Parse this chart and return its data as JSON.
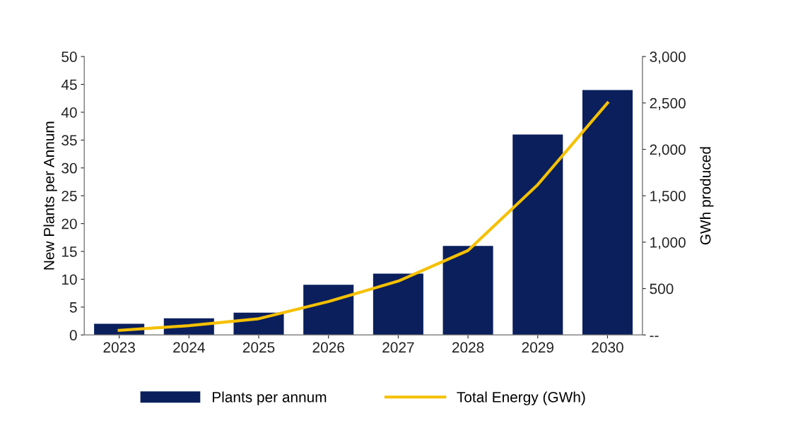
{
  "chart_data": {
    "type": "bar",
    "categories": [
      "2023",
      "2024",
      "2025",
      "2026",
      "2027",
      "2028",
      "2029",
      "2030"
    ],
    "series": [
      {
        "name": "Plants per annum",
        "color": "#0a1f5c",
        "values": [
          2,
          3,
          4,
          9,
          11,
          16,
          36,
          44
        ]
      },
      {
        "name": "Total Energy (GWh)",
        "type": "line",
        "axis": "y2",
        "color": "#f5c000",
        "values": [
          50,
          100,
          175,
          360,
          580,
          910,
          1620,
          2500
        ]
      }
    ],
    "ylabel": "New Plants per Annum",
    "y2label": "GWh produced",
    "ylim": [
      0,
      50
    ],
    "yticks": [
      0,
      5,
      10,
      15,
      20,
      25,
      30,
      35,
      40,
      45,
      50
    ],
    "y2lim": [
      0,
      3000
    ],
    "y2ticks": [
      {
        "value": 0,
        "label": "--"
      },
      {
        "value": 500,
        "label": "500"
      },
      {
        "value": 1000,
        "label": "1,000"
      },
      {
        "value": 1500,
        "label": "1,500"
      },
      {
        "value": 2000,
        "label": "2,000"
      },
      {
        "value": 2500,
        "label": "2,500"
      },
      {
        "value": 3000,
        "label": "3,000"
      }
    ],
    "legend": "bottom",
    "grid": false
  }
}
